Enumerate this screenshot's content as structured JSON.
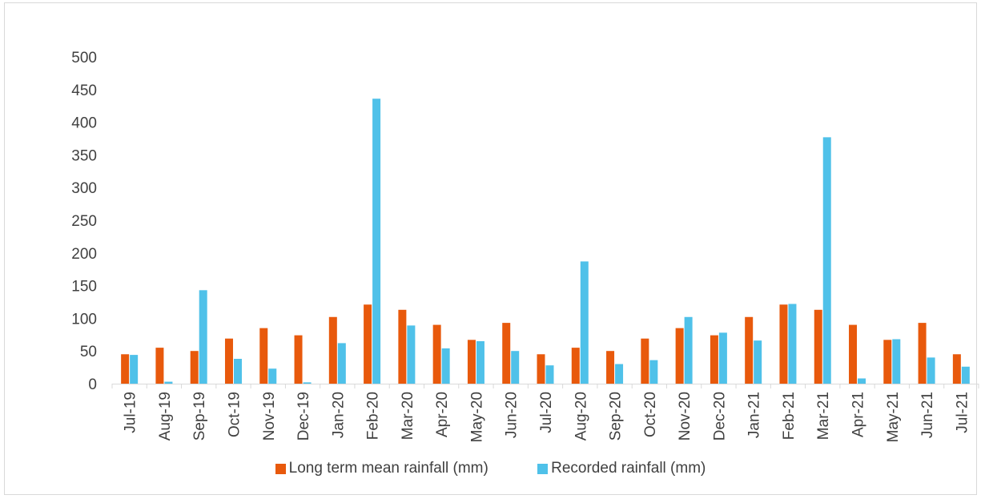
{
  "chart_data": {
    "type": "bar",
    "title": "",
    "xlabel": "",
    "ylabel": "",
    "ylim": [
      0,
      500
    ],
    "yticks": [
      0,
      50,
      100,
      150,
      200,
      250,
      300,
      350,
      400,
      450,
      500
    ],
    "grid": false,
    "legend_position": "bottom",
    "categories": [
      "Jul-19",
      "Aug-19",
      "Sep-19",
      "Oct-19",
      "Nov-19",
      "Dec-19",
      "Jan-20",
      "Feb-20",
      "Mar-20",
      "Apr-20",
      "May-20",
      "Jun-20",
      "Jul-20",
      "Aug-20",
      "Sep-20",
      "Oct-20",
      "Nov-20",
      "Dec-20",
      "Jan-21",
      "Feb-21",
      "Mar-21",
      "Apr-21",
      "May-21",
      "Jun-21",
      "Jul-21"
    ],
    "series": [
      {
        "name": "Long term mean rainfall (mm)",
        "color": "#e8590c",
        "values": [
          45,
          55,
          50,
          69,
          85,
          74,
          102,
          121,
          113,
          90,
          67,
          93,
          45,
          55,
          50,
          69,
          85,
          74,
          102,
          121,
          113,
          90,
          67,
          93,
          45
        ]
      },
      {
        "name": "Recorded rainfall (mm)",
        "color": "#4fc1e9",
        "values": [
          44,
          3,
          143,
          38,
          23,
          2,
          62,
          436,
          89,
          54,
          65,
          50,
          28,
          187,
          30,
          36,
          102,
          78,
          66,
          122,
          377,
          8,
          68,
          40,
          26
        ]
      }
    ]
  }
}
